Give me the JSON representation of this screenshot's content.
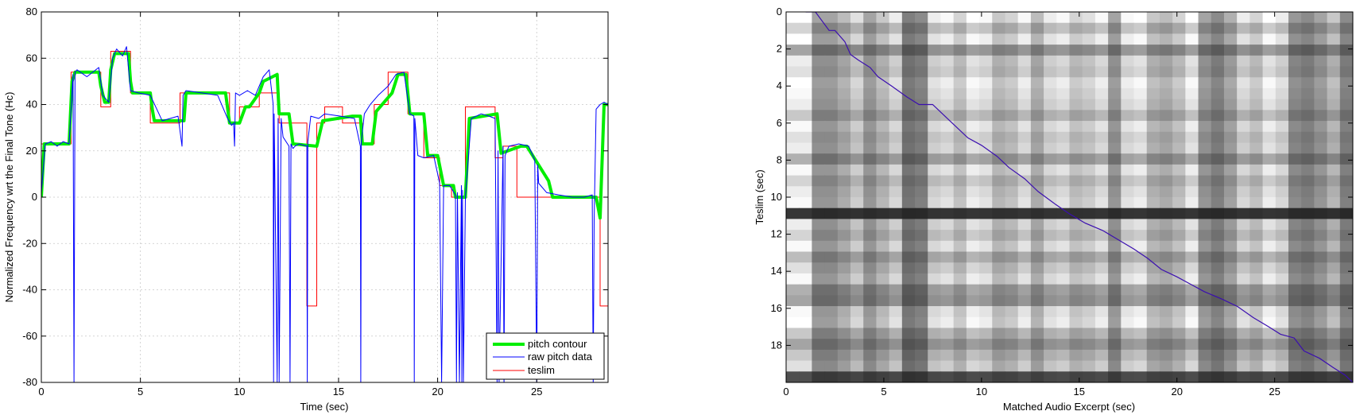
{
  "chart_data": [
    {
      "type": "line",
      "xlabel": "Time (sec)",
      "ylabel": "Normalized Frequency wrt the Final Tone (Hc)",
      "xlim": [
        0,
        28.6
      ],
      "ylim": [
        -80,
        80
      ],
      "xticks": [
        0,
        5,
        10,
        15,
        20,
        25
      ],
      "yticks": [
        80,
        60,
        40,
        20,
        0,
        -20,
        -40,
        -60,
        -80
      ],
      "grid": true,
      "legend_position": "bottom-right",
      "series": [
        {
          "name": "pitch contour",
          "color": "#00ee00",
          "x": [
            0.0,
            0.15,
            1.4,
            1.55,
            1.7,
            2.9,
            3.0,
            3.2,
            3.4,
            3.5,
            3.7,
            4.4,
            4.5,
            4.6,
            5.5,
            5.6,
            5.7,
            7.2,
            7.3,
            8.0,
            9.3,
            9.5,
            10.0,
            10.3,
            10.5,
            11.0,
            11.2,
            11.9,
            12.0,
            12.5,
            12.7,
            13.9,
            14.2,
            15.7,
            16.1,
            16.2,
            16.7,
            16.9,
            17.7,
            18.0,
            18.4,
            18.6,
            19.3,
            19.5,
            20.0,
            20.3,
            20.8,
            20.9,
            21.4,
            21.6,
            23.0,
            23.2,
            24.2,
            24.5,
            25.6,
            25.8,
            27.5,
            28.0,
            28.2,
            28.4,
            28.6
          ],
          "y": [
            0,
            23,
            23,
            50,
            54,
            54,
            48,
            41,
            41,
            55,
            62,
            62,
            50,
            45,
            45,
            38,
            33,
            33,
            45,
            45,
            45,
            32,
            32,
            39,
            39,
            45,
            50,
            53,
            36,
            36,
            23,
            22,
            33,
            35,
            35,
            23,
            23,
            37,
            45,
            53,
            53,
            36,
            36,
            18,
            18,
            5,
            5,
            0,
            0,
            34,
            36,
            19,
            22,
            22,
            7,
            0,
            0,
            0,
            -9,
            40,
            40
          ]
        },
        {
          "name": "raw pitch data",
          "color": "#0000ff",
          "x": [
            0.0,
            0.2,
            0.5,
            0.8,
            1.1,
            1.4,
            1.6,
            1.65,
            1.7,
            1.8,
            2.3,
            2.9,
            3.1,
            3.4,
            3.6,
            3.8,
            4.1,
            4.3,
            4.5,
            4.9,
            5.5,
            6.1,
            6.9,
            7.1,
            7.15,
            7.3,
            8.1,
            8.9,
            9.4,
            9.6,
            9.7,
            9.75,
            9.8,
            10.0,
            10.4,
            10.8,
            11.2,
            11.5,
            11.7,
            11.72,
            11.75,
            11.9,
            11.95,
            12.0,
            12.1,
            12.2,
            12.5,
            12.55,
            12.6,
            12.7,
            12.8,
            13.0,
            13.4,
            13.42,
            13.45,
            13.6,
            14.0,
            14.3,
            15.1,
            15.8,
            16.1,
            16.12,
            16.15,
            16.3,
            16.6,
            17.0,
            17.5,
            17.9,
            18.3,
            18.6,
            18.8,
            18.82,
            18.85,
            19.0,
            19.3,
            19.8,
            20.1,
            20.2,
            20.3,
            20.6,
            20.9,
            20.95,
            21.0,
            21.1,
            21.2,
            21.22,
            21.25,
            21.3,
            21.4,
            21.7,
            22.2,
            22.6,
            22.9,
            23.0,
            23.05,
            23.1,
            23.3,
            23.35,
            23.4,
            23.6,
            24.1,
            24.6,
            24.9,
            25.0,
            25.05,
            25.1,
            25.5,
            26.1,
            26.8,
            27.4,
            27.8,
            27.85,
            27.9,
            28.0,
            28.2,
            28.4,
            28.6
          ],
          "y": [
            2,
            23,
            24,
            22,
            24,
            23,
            53,
            -80,
            54,
            55,
            52,
            56,
            44,
            41,
            60,
            64,
            61,
            65,
            46,
            45,
            44,
            33,
            35,
            22,
            44,
            46,
            45,
            44,
            34,
            31,
            32,
            22,
            45,
            44,
            46,
            44,
            52,
            55,
            40,
            -80,
            36,
            -80,
            34,
            -80,
            34,
            26,
            22,
            -80,
            23,
            21,
            22,
            23,
            22,
            -80,
            24,
            35,
            34,
            36,
            35,
            34,
            22,
            -80,
            24,
            36,
            40,
            44,
            48,
            53,
            54,
            36,
            35,
            -80,
            34,
            18,
            17,
            18,
            6,
            -80,
            5,
            5,
            1,
            -80,
            2,
            -80,
            5,
            -80,
            3,
            -80,
            0,
            34,
            36,
            35,
            34,
            -80,
            20,
            -80,
            22,
            -80,
            18,
            22,
            23,
            22,
            16,
            -80,
            14,
            6,
            2,
            1,
            0,
            0,
            1,
            -80,
            -10,
            38,
            40,
            41,
            40
          ]
        },
        {
          "name": "teslim",
          "color": "#ff0000",
          "x": [
            0.0,
            1.5,
            1.5,
            3.0,
            3.0,
            3.5,
            3.5,
            4.5,
            4.5,
            5.5,
            5.5,
            7.0,
            7.0,
            9.5,
            9.5,
            10.0,
            10.0,
            11.0,
            11.0,
            12.0,
            12.0,
            13.4,
            13.4,
            13.9,
            13.9,
            14.3,
            14.3,
            15.2,
            15.2,
            16.2,
            16.2,
            16.8,
            16.8,
            17.5,
            17.5,
            18.5,
            18.5,
            19.3,
            19.3,
            20.1,
            20.1,
            20.7,
            20.7,
            21.4,
            21.4,
            22.9,
            22.9,
            23.3,
            23.3,
            24.0,
            24.0,
            25.5,
            25.5,
            28.2,
            28.2,
            28.6
          ],
          "y": [
            23,
            23,
            54,
            54,
            39,
            39,
            63,
            63,
            45,
            45,
            32,
            32,
            45,
            45,
            32,
            32,
            39,
            39,
            45,
            45,
            32,
            32,
            -47,
            -47,
            32,
            32,
            39,
            39,
            32,
            32,
            23,
            23,
            40,
            40,
            54,
            54,
            36,
            36,
            17,
            17,
            5,
            5,
            0,
            0,
            39,
            39,
            17,
            17,
            22,
            22,
            0,
            0,
            0,
            0,
            -47,
            -47
          ]
        }
      ]
    },
    {
      "type": "heatmap",
      "xlabel": "Matched Audio Excerpt (sec)",
      "ylabel": "Teslim (sec)",
      "xlim": [
        0,
        29
      ],
      "ylim": [
        0,
        20
      ],
      "xticks": [
        0,
        5,
        10,
        15,
        20,
        25
      ],
      "yticks": [
        0,
        2,
        4,
        6,
        8,
        10,
        12,
        14,
        16,
        18
      ],
      "colormap": "gray",
      "column_lightness": [
        1.0,
        1.0,
        0.55,
        0.55,
        0.65,
        0.8,
        0.55,
        0.7,
        0.85,
        0.4,
        0.45,
        0.85,
        0.9,
        0.75,
        0.95,
        0.9,
        0.7,
        0.75,
        0.9,
        0.65,
        0.85,
        0.9,
        0.75,
        0.8,
        0.9,
        0.55,
        0.9,
        0.95,
        0.7,
        0.65,
        0.75,
        0.95,
        0.55,
        0.45,
        0.6,
        0.85,
        0.75,
        0.95,
        0.85,
        0.5,
        0.45,
        0.55,
        0.7,
        0.45
      ],
      "row_lightness": [
        1.0,
        0.75,
        0.95,
        0.55,
        0.85,
        0.8,
        0.95,
        0.9,
        0.85,
        0.7,
        0.9,
        0.8,
        0.85,
        0.6,
        0.9,
        0.75,
        0.85,
        0.9,
        0.1,
        0.85,
        0.75,
        0.9,
        0.65,
        0.8,
        0.9,
        0.6,
        0.55,
        0.9,
        0.95,
        0.7,
        0.55,
        0.7,
        0.8,
        0.2
      ],
      "path": {
        "color": "#3b0fb0",
        "x": [
          1.0,
          1.5,
          2.2,
          2.5,
          3.0,
          3.3,
          3.7,
          4.3,
          4.7,
          5.4,
          6.2,
          6.8,
          7.5,
          8.5,
          9.3,
          10.0,
          10.8,
          11.4,
          12.2,
          12.9,
          13.8,
          14.5,
          15.3,
          16.2,
          17.0,
          17.8,
          18.5,
          19.2,
          20.0,
          20.7,
          21.4,
          22.3,
          23.1,
          23.9,
          24.7,
          25.3,
          26.0,
          26.5,
          27.3,
          28.0,
          28.6,
          29.0
        ],
        "y": [
          0,
          0,
          1,
          1,
          1.6,
          2.3,
          2.6,
          3.0,
          3.5,
          4.0,
          4.6,
          5.0,
          5.0,
          6.0,
          6.8,
          7.2,
          7.8,
          8.4,
          9.0,
          9.7,
          10.4,
          10.9,
          11.4,
          11.8,
          12.3,
          12.8,
          13.3,
          13.9,
          14.3,
          14.7,
          15.1,
          15.5,
          15.9,
          16.5,
          17.0,
          17.4,
          17.6,
          18.3,
          18.7,
          19.2,
          19.6,
          20.0
        ]
      }
    }
  ]
}
